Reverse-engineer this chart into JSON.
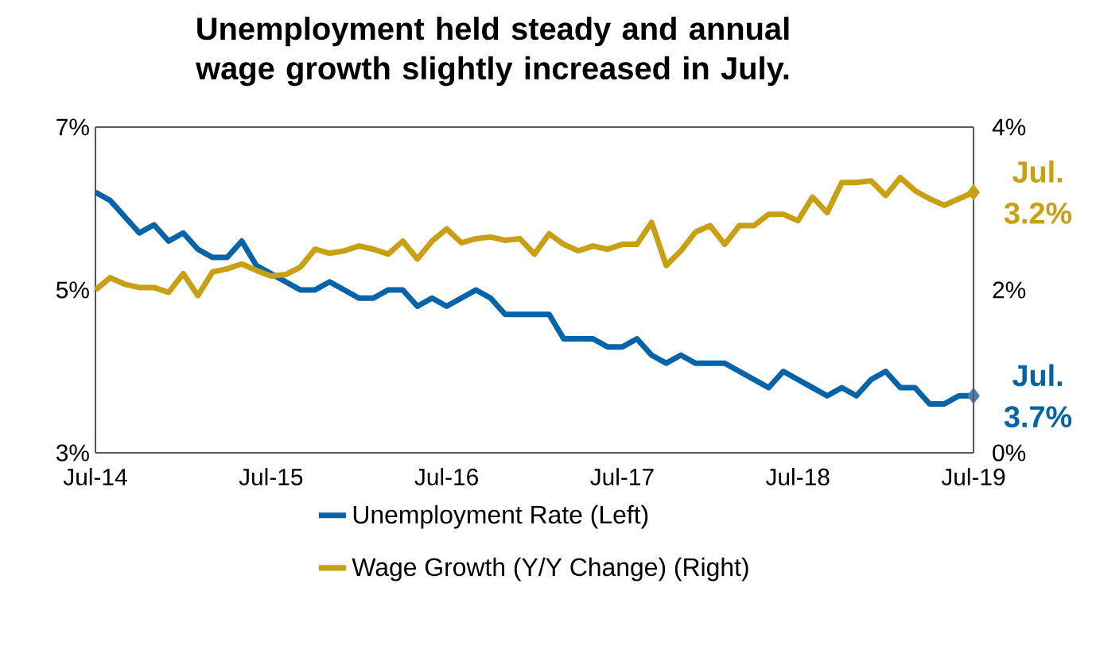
{
  "chart_data": {
    "type": "line",
    "title": "Unemployment held steady and annual wage growth  slightly increased in July.",
    "categories": [
      "Jul-14",
      null,
      null,
      null,
      null,
      null,
      null,
      null,
      null,
      null,
      null,
      null,
      "Jul-15",
      null,
      null,
      null,
      null,
      null,
      null,
      null,
      null,
      null,
      null,
      null,
      "Jul-16",
      null,
      null,
      null,
      null,
      null,
      null,
      null,
      null,
      null,
      null,
      null,
      "Jul-17",
      null,
      null,
      null,
      null,
      null,
      null,
      null,
      null,
      null,
      null,
      null,
      "Jul-18",
      null,
      null,
      null,
      null,
      null,
      null,
      null,
      null,
      null,
      null,
      null,
      "Jul-19"
    ],
    "series": [
      {
        "name": "Unemployment Rate (Left)",
        "color": "#0563aa",
        "values": [
          6.2,
          6.1,
          5.9,
          5.7,
          5.8,
          5.6,
          5.7,
          5.5,
          5.4,
          5.4,
          5.6,
          5.3,
          5.2,
          5.1,
          5.0,
          5.0,
          5.1,
          5.0,
          4.9,
          4.9,
          5.0,
          5.0,
          4.8,
          4.9,
          4.8,
          4.9,
          5.0,
          4.9,
          4.7,
          4.7,
          4.7,
          4.7,
          4.4,
          4.4,
          4.4,
          4.3,
          4.3,
          4.4,
          4.2,
          4.1,
          4.2,
          4.1,
          4.1,
          4.1,
          4.0,
          3.9,
          3.8,
          4.0,
          3.9,
          3.8,
          3.7,
          3.8,
          3.7,
          3.9,
          4.0,
          3.8,
          3.8,
          3.6,
          3.6,
          3.7,
          3.7
        ]
      },
      {
        "name": "Wage Growth (Y/Y Change) (Right)",
        "color": "#c9a013",
        "axis": "y2",
        "values": [
          2.0,
          2.15,
          2.07,
          2.03,
          2.03,
          1.97,
          2.2,
          1.93,
          2.22,
          2.26,
          2.32,
          2.24,
          2.17,
          2.19,
          2.28,
          2.5,
          2.45,
          2.48,
          2.54,
          2.5,
          2.44,
          2.6,
          2.38,
          2.6,
          2.75,
          2.58,
          2.63,
          2.65,
          2.61,
          2.63,
          2.44,
          2.69,
          2.56,
          2.48,
          2.54,
          2.5,
          2.56,
          2.56,
          2.83,
          2.3,
          2.48,
          2.71,
          2.79,
          2.56,
          2.79,
          2.79,
          2.93,
          2.93,
          2.85,
          3.14,
          2.95,
          3.32,
          3.32,
          3.34,
          3.16,
          3.38,
          3.22,
          3.12,
          3.04,
          3.12,
          3.2
        ]
      },
      {
        "type": "scatter",
        "color": "#4a7ebb",
        "marker": "diamond",
        "x": [
          "Jul-19"
        ],
        "values": [
          3.7
        ]
      },
      {
        "type": "scatter",
        "color": "#c9a013",
        "marker": "diamond",
        "axis": "y2",
        "x": [
          "Jul-19"
        ],
        "values": [
          3.2
        ]
      }
    ],
    "ylim": [
      3,
      7
    ],
    "yticks": [
      {
        "value": 3,
        "label": "3%"
      },
      {
        "value": 5,
        "label": "5%"
      },
      {
        "value": 7,
        "label": "7%"
      }
    ],
    "y2lim": [
      0,
      4
    ],
    "y2ticks": [
      {
        "value": 0,
        "label": "0%"
      },
      {
        "value": 2,
        "label": "2%"
      },
      {
        "value": 4,
        "label": "4%"
      }
    ],
    "annotations": [
      {
        "text": "Jul. 3.7%",
        "x": "Jul-19",
        "y": 3.7
      },
      {
        "text": "Jul. 3.2%",
        "x": "Jul-19",
        "y": 6.2
      }
    ],
    "marker": "none",
    "legend": "bottom",
    "grid": false
  }
}
